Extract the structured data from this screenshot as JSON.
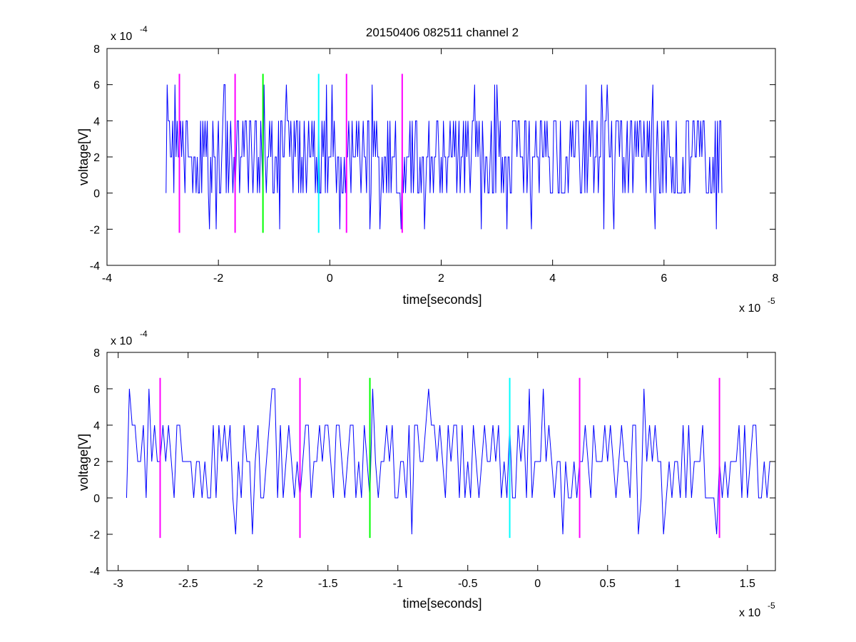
{
  "chart_data": [
    {
      "type": "line",
      "title": "20150406 082511 channel 2",
      "xlabel": "time[seconds]",
      "ylabel": "voltage[V]",
      "x_multiplier_base": "x 10",
      "x_multiplier_exp": "-5",
      "y_multiplier_base": "x 10",
      "y_multiplier_exp": "-4",
      "xlim": [
        -4,
        8
      ],
      "ylim": [
        -4,
        8
      ],
      "xticks": [
        -4,
        -2,
        0,
        2,
        4,
        6,
        8
      ],
      "xtick_labels": [
        "-4",
        "-2",
        "0",
        "2",
        "4",
        "6",
        "8"
      ],
      "yticks": [
        -4,
        -2,
        0,
        2,
        4,
        6,
        8
      ],
      "ytick_labels": [
        "-4",
        "-2",
        "0",
        "2",
        "4",
        "6",
        "8"
      ],
      "signal": {
        "color": "#0000ff",
        "x_start": -2.94,
        "x_end": 7.04,
        "levels": [
          -2,
          0,
          2,
          4,
          6
        ],
        "note_values_in_units_of_1e-4_V_and_1e-5_s": true
      },
      "markers": [
        {
          "x": -2.7,
          "color": "#ff00ff",
          "y_range": [
            -2.2,
            6.6
          ]
        },
        {
          "x": -1.7,
          "color": "#ff00ff",
          "y_range": [
            -2.2,
            6.6
          ]
        },
        {
          "x": -1.2,
          "color": "#00ff00",
          "y_range": [
            -2.2,
            6.6
          ]
        },
        {
          "x": -0.2,
          "color": "#00ffff",
          "y_range": [
            -2.2,
            6.6
          ]
        },
        {
          "x": 0.3,
          "color": "#ff00ff",
          "y_range": [
            -2.2,
            6.6
          ]
        },
        {
          "x": 1.3,
          "color": "#ff00ff",
          "y_range": [
            -2.2,
            6.6
          ]
        }
      ]
    },
    {
      "type": "line",
      "title": "",
      "xlabel": "time[seconds]",
      "ylabel": "voltage[V]",
      "x_multiplier_base": "x 10",
      "x_multiplier_exp": "-5",
      "y_multiplier_base": "x 10",
      "y_multiplier_exp": "-4",
      "xlim": [
        -3.08,
        1.7
      ],
      "ylim": [
        -4,
        8
      ],
      "xticks": [
        -3,
        -2.5,
        -2,
        -1.5,
        -1,
        -0.5,
        0,
        0.5,
        1,
        1.5
      ],
      "xtick_labels": [
        "-3",
        "-2.5",
        "-2",
        "-1.5",
        "-1",
        "-0.5",
        "0",
        "0.5",
        "1",
        "1.5"
      ],
      "yticks": [
        -4,
        -2,
        0,
        2,
        4,
        6,
        8
      ],
      "ytick_labels": [
        "-4",
        "-2",
        "0",
        "2",
        "4",
        "6",
        "8"
      ],
      "signal": {
        "color": "#0000ff",
        "x_start": -2.94,
        "x_end": 1.7,
        "levels": [
          -2,
          0,
          2,
          4,
          6
        ]
      },
      "markers": [
        {
          "x": -2.7,
          "color": "#ff00ff",
          "y_range": [
            -2.2,
            6.6
          ]
        },
        {
          "x": -1.7,
          "color": "#ff00ff",
          "y_range": [
            -2.2,
            6.6
          ]
        },
        {
          "x": -1.2,
          "color": "#00ff00",
          "y_range": [
            -2.2,
            6.6
          ]
        },
        {
          "x": -0.2,
          "color": "#00ffff",
          "y_range": [
            -2.2,
            6.6
          ]
        },
        {
          "x": 0.3,
          "color": "#ff00ff",
          "y_range": [
            -2.2,
            6.6
          ]
        },
        {
          "x": 1.3,
          "color": "#ff00ff",
          "y_range": [
            -2.2,
            6.6
          ]
        }
      ]
    }
  ]
}
